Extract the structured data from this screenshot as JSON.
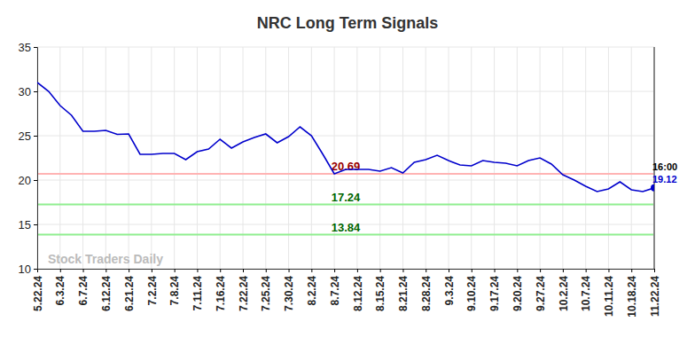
{
  "chart_data": {
    "type": "line",
    "title": "NRC Long Term Signals",
    "categories": [
      "5.22.24",
      null,
      "6.3.24",
      null,
      "6.7.24",
      null,
      "6.12.24",
      null,
      "6.21.24",
      null,
      "7.2.24",
      null,
      "7.8.24",
      null,
      "7.11.24",
      null,
      "7.16.24",
      null,
      "7.22.24",
      null,
      "7.25.24",
      null,
      "7.30.24",
      null,
      "8.2.24",
      null,
      "8.7.24",
      null,
      "8.12.24",
      null,
      "8.15.24",
      null,
      "8.21.24",
      null,
      "8.28.24",
      null,
      "9.3.24",
      null,
      "9.10.24",
      null,
      "9.17.24",
      null,
      "9.20.24",
      null,
      "9.27.24",
      null,
      "10.2.24",
      null,
      "10.7.24",
      null,
      "10.11.24",
      null,
      "10.18.24",
      null,
      "11.22.24"
    ],
    "series": [
      {
        "name": "NRC",
        "color": "#0000cc",
        "values": [
          31.0,
          30.0,
          28.4,
          27.3,
          25.5,
          25.5,
          25.6,
          25.15,
          25.2,
          22.9,
          22.9,
          23.0,
          23.0,
          22.3,
          23.2,
          23.5,
          24.6,
          23.6,
          24.3,
          24.8,
          25.2,
          24.2,
          24.9,
          26.0,
          25.0,
          22.9,
          20.7,
          21.2,
          21.2,
          21.2,
          21.0,
          21.4,
          20.8,
          22.0,
          22.3,
          22.8,
          22.2,
          21.7,
          21.6,
          22.2,
          22.0,
          21.9,
          21.6,
          22.2,
          22.5,
          21.8,
          20.6,
          20.0,
          19.3,
          18.7,
          19.0,
          19.8,
          18.9,
          18.7,
          19.12
        ]
      }
    ],
    "ylim": [
      10,
      35
    ],
    "yticks": [
      10,
      15,
      20,
      25,
      30,
      35
    ],
    "grid": true,
    "reference_lines": [
      {
        "value": 20.69,
        "color": "#ffb3b3",
        "label_color": "#990000"
      },
      {
        "value": 17.24,
        "color": "#90ee90",
        "label_color": "#006600"
      },
      {
        "value": 13.84,
        "color": "#90ee90",
        "label_color": "#006600"
      }
    ],
    "end_label": "16:00",
    "watermark": "Stock Traders Daily"
  }
}
